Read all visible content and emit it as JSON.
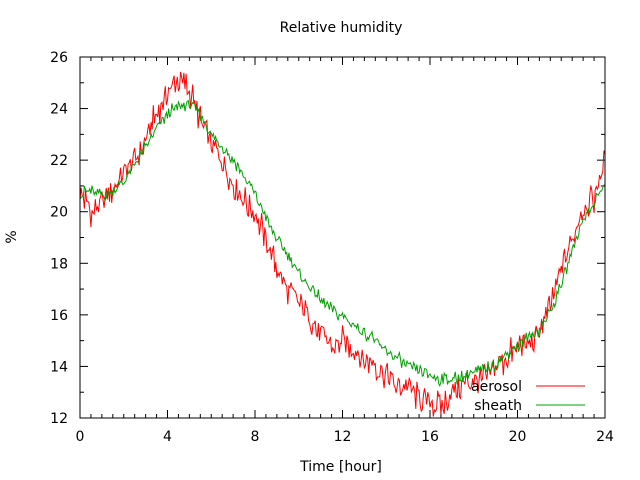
{
  "chart_data": {
    "type": "line",
    "title": "Relative humidity",
    "xlabel": "Time [hour]",
    "ylabel": "%",
    "xlim": [
      0,
      24
    ],
    "ylim": [
      12,
      26
    ],
    "xticks": [
      0,
      4,
      8,
      12,
      16,
      20,
      24
    ],
    "yticks": [
      12,
      14,
      16,
      18,
      20,
      22,
      24,
      26
    ],
    "grid": false,
    "legend_position": "bottom-right",
    "series": [
      {
        "name": "aerosol",
        "color": "#ff0000",
        "x": [
          0,
          0.5,
          1,
          1.5,
          2,
          2.5,
          3,
          3.5,
          4,
          4.5,
          5,
          5.5,
          6,
          6.5,
          7,
          7.5,
          8,
          8.5,
          9,
          9.5,
          10,
          10.5,
          11,
          11.5,
          12,
          12.5,
          13,
          13.5,
          14,
          14.5,
          15,
          15.5,
          16,
          16.5,
          17,
          17.5,
          18,
          18.5,
          19,
          19.5,
          20,
          20.5,
          21,
          21.5,
          22,
          22.5,
          23,
          23.5,
          24
        ],
        "y": [
          20.9,
          20.0,
          20.3,
          20.9,
          21.4,
          22.0,
          22.8,
          23.8,
          24.6,
          25.2,
          24.7,
          23.6,
          22.6,
          22.0,
          21.1,
          20.5,
          20.0,
          19.0,
          17.8,
          17.0,
          16.5,
          16.0,
          15.2,
          14.8,
          15.0,
          14.6,
          14.2,
          14.0,
          13.7,
          13.3,
          13.2,
          12.8,
          12.6,
          12.4,
          13.0,
          13.3,
          13.5,
          13.6,
          13.9,
          14.3,
          14.8,
          14.9,
          15.3,
          16.3,
          17.8,
          19.0,
          20.2,
          20.5,
          22.0
        ]
      },
      {
        "name": "sheath",
        "color": "#00a000",
        "x": [
          0,
          0.5,
          1,
          1.5,
          2,
          2.5,
          3,
          3.5,
          4,
          4.5,
          5,
          5.5,
          6,
          6.5,
          7,
          7.5,
          8,
          8.5,
          9,
          9.5,
          10,
          10.5,
          11,
          11.5,
          12,
          12.5,
          13,
          13.5,
          14,
          14.5,
          15,
          15.5,
          16,
          16.5,
          17,
          17.5,
          18,
          18.5,
          19,
          19.5,
          20,
          20.5,
          21,
          21.5,
          22,
          22.5,
          23,
          23.5,
          24
        ],
        "y": [
          20.7,
          20.8,
          20.6,
          20.8,
          21.2,
          21.8,
          22.5,
          23.2,
          23.8,
          24.1,
          24.2,
          23.8,
          23.0,
          22.5,
          22.0,
          21.4,
          20.7,
          19.8,
          18.9,
          18.3,
          17.6,
          17.1,
          16.6,
          16.2,
          15.9,
          15.6,
          15.3,
          15.0,
          14.6,
          14.3,
          14.0,
          13.8,
          13.6,
          13.5,
          13.5,
          13.6,
          13.8,
          13.9,
          14.1,
          14.5,
          14.8,
          15.1,
          15.4,
          16.1,
          17.2,
          18.5,
          19.8,
          20.3,
          21.1
        ]
      }
    ]
  }
}
